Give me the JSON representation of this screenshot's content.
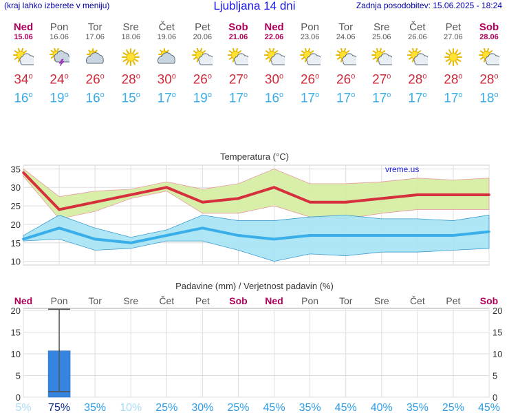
{
  "header": {
    "left_note": "(kraj lahko izberete v meniju)",
    "title": "Ljubljana 14 dni",
    "updated": "Zadnja posodobitev: 15.06.2025 - 18:24"
  },
  "degree_symbol": "o",
  "days": [
    {
      "name": "Ned",
      "date": "15.06",
      "weekend": true,
      "icon": "partly-sunny-icon",
      "tmax": "34",
      "tmin": "16"
    },
    {
      "name": "Pon",
      "date": "16.06",
      "weekend": false,
      "icon": "sun-cloud-storm-icon",
      "tmax": "24",
      "tmin": "19"
    },
    {
      "name": "Tor",
      "date": "17.06",
      "weekend": false,
      "icon": "cloudy-sun-icon",
      "tmax": "26",
      "tmin": "16"
    },
    {
      "name": "Sre",
      "date": "18.06",
      "weekend": false,
      "icon": "sunny-icon",
      "tmax": "28",
      "tmin": "15"
    },
    {
      "name": "Čet",
      "date": "19.06",
      "weekend": false,
      "icon": "cloudy-sun-icon",
      "tmax": "30",
      "tmin": "17"
    },
    {
      "name": "Pet",
      "date": "20.06",
      "weekend": false,
      "icon": "partly-sunny-icon",
      "tmax": "26",
      "tmin": "19"
    },
    {
      "name": "Sob",
      "date": "21.06",
      "weekend": true,
      "icon": "partly-sunny-icon",
      "tmax": "27",
      "tmin": "17"
    },
    {
      "name": "Ned",
      "date": "22.06",
      "weekend": true,
      "icon": "partly-sunny-icon",
      "tmax": "30",
      "tmin": "16"
    },
    {
      "name": "Pon",
      "date": "23.06",
      "weekend": false,
      "icon": "partly-sunny-icon",
      "tmax": "26",
      "tmin": "17"
    },
    {
      "name": "Tor",
      "date": "24.06",
      "weekend": false,
      "icon": "partly-sunny-icon",
      "tmax": "26",
      "tmin": "17"
    },
    {
      "name": "Sre",
      "date": "25.06",
      "weekend": false,
      "icon": "partly-sunny-icon",
      "tmax": "27",
      "tmin": "17"
    },
    {
      "name": "Čet",
      "date": "26.06",
      "weekend": false,
      "icon": "partly-sunny-icon",
      "tmax": "28",
      "tmin": "17"
    },
    {
      "name": "Pet",
      "date": "27.06",
      "weekend": false,
      "icon": "sunny-icon",
      "tmax": "28",
      "tmin": "17"
    },
    {
      "name": "Sob",
      "date": "28.06",
      "weekend": true,
      "icon": "partly-sunny-icon",
      "tmax": "28",
      "tmin": "18"
    }
  ],
  "colors": {
    "max_line": "#d6303d",
    "max_band": "#d4eda0",
    "min_line": "#3aaee8",
    "min_band": "#a5e3f5",
    "bar": "#3585e0",
    "weekend": "#b0005a",
    "weekday": "#555555",
    "prob": "#2e9ee8",
    "prob_low": "#a8dcf5",
    "prob_strong": "#0a2a8a"
  },
  "chart_data": [
    {
      "type": "line",
      "title": "Temperatura (°C)",
      "watermark": "vreme.us",
      "ylim": [
        9,
        36
      ],
      "yticks": [
        10,
        15,
        20,
        25,
        30,
        35
      ],
      "series": [
        {
          "name": "max",
          "values": [
            34,
            24,
            26,
            28,
            30,
            26,
            27,
            30,
            26,
            26,
            27,
            28,
            28,
            28
          ],
          "band_low": [
            33,
            21.5,
            23.5,
            27,
            29,
            23,
            23,
            25,
            22,
            21.5,
            23,
            24,
            24,
            24
          ],
          "band_high": [
            35,
            27.5,
            29,
            29.5,
            31.5,
            29.5,
            31,
            35,
            31,
            31,
            31.5,
            32.5,
            32,
            32.5
          ]
        },
        {
          "name": "min",
          "values": [
            16,
            19,
            16,
            15,
            17,
            19,
            17,
            16,
            17,
            17,
            17,
            17,
            17,
            18
          ],
          "band_low": [
            15.5,
            16,
            13,
            13.5,
            15.5,
            15.5,
            13,
            10,
            12,
            11.5,
            12.5,
            12.5,
            13,
            13.5
          ],
          "band_high": [
            17,
            22.5,
            19,
            16.5,
            18.5,
            22.5,
            21,
            21,
            22,
            22.5,
            21.5,
            21.5,
            21,
            22.5
          ]
        }
      ]
    },
    {
      "type": "bar",
      "title": "Padavine (mm) / Verjetnost padavin (%)",
      "ylim": [
        0,
        20.5
      ],
      "yticks": [
        0,
        5,
        10,
        15,
        20
      ],
      "values": [
        0,
        10.7,
        0,
        0,
        0,
        0,
        0,
        0,
        0,
        0,
        0,
        0,
        0,
        0
      ],
      "error_low": [
        0,
        1.3,
        0,
        0,
        0,
        0,
        0,
        0,
        0,
        0,
        0,
        0,
        0,
        0
      ],
      "error_high": [
        0,
        20.3,
        0,
        0,
        0,
        0,
        0,
        0,
        0,
        0,
        0,
        0,
        0,
        0
      ],
      "probabilities": [
        "5%",
        "75%",
        "35%",
        "10%",
        "25%",
        "30%",
        "25%",
        "45%",
        "35%",
        "45%",
        "40%",
        "35%",
        "25%",
        "45%"
      ],
      "prob_values": [
        5,
        75,
        35,
        10,
        25,
        30,
        25,
        45,
        35,
        45,
        40,
        35,
        25,
        45
      ]
    }
  ]
}
